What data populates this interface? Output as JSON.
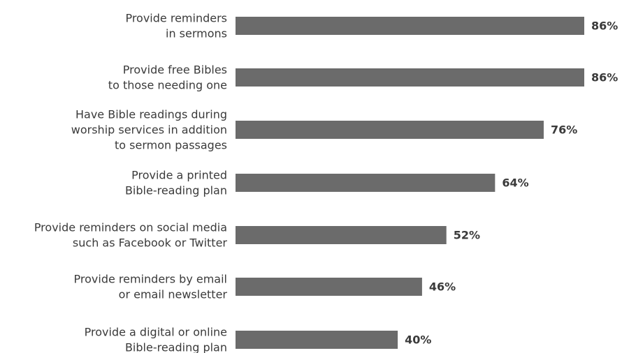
{
  "chart_data": {
    "type": "bar",
    "orientation": "horizontal",
    "categories": [
      [
        "Provide reminders",
        "in sermons"
      ],
      [
        "Provide free Bibles",
        "to those needing one"
      ],
      [
        "Have Bible readings during",
        "worship services in addition",
        "to sermon passages"
      ],
      [
        "Provide a printed",
        "Bible-reading plan"
      ],
      [
        "Provide reminders on social media",
        "such as Facebook or Twitter"
      ],
      [
        "Provide reminders by email",
        "or email newsletter"
      ],
      [
        "Provide a digital or online",
        "Bible-reading plan"
      ]
    ],
    "values": [
      86,
      86,
      76,
      64,
      52,
      46,
      40
    ],
    "value_suffix": "%",
    "bar_color": "#6b6b6b",
    "xlim": [
      0,
      86
    ],
    "grid": false,
    "legend": "none"
  }
}
